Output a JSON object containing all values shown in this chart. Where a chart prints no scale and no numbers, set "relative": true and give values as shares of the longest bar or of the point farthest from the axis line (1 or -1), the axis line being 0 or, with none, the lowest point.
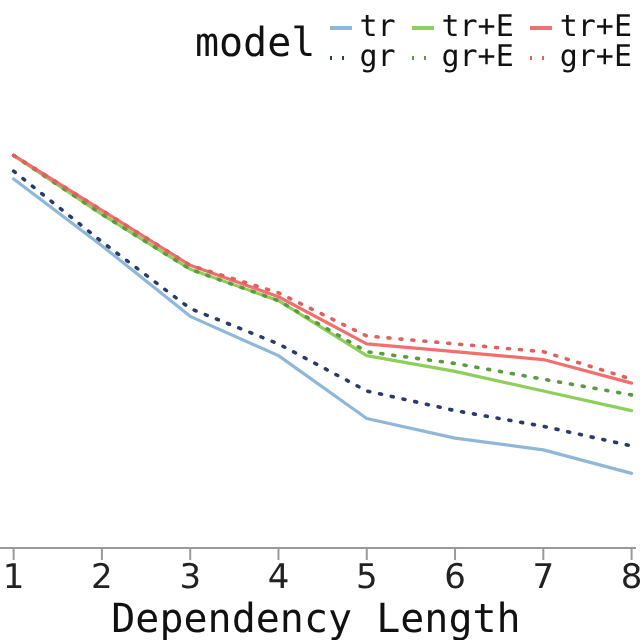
{
  "chart_data": {
    "type": "line",
    "relative": true,
    "xlabel": "Dependency Length",
    "legend_title": "model",
    "legend": "top right",
    "x": [
      1,
      2,
      3,
      4,
      5,
      6,
      7,
      8
    ],
    "xlim": [
      0.8,
      8.05
    ],
    "xticks": [
      1,
      2,
      3,
      4,
      5,
      6,
      7,
      8
    ],
    "marker": "none",
    "series": [
      {
        "name": "tr",
        "color": "#8fb8d8",
        "line_style": "solid",
        "values": [
          0.94,
          0.77,
          0.59,
          0.49,
          0.33,
          0.28,
          0.25,
          0.19
        ]
      },
      {
        "name": "gr",
        "color": "#2a3a6a",
        "line_style": "dotted",
        "values": [
          0.96,
          0.78,
          0.61,
          0.52,
          0.4,
          0.35,
          0.31,
          0.26
        ]
      },
      {
        "name": "tr+E",
        "color": "#8dcf5a",
        "line_style": "solid",
        "values": [
          1.0,
          0.85,
          0.71,
          0.63,
          0.49,
          0.45,
          0.4,
          0.35
        ]
      },
      {
        "name": "gr+E",
        "color": "#5a9a40",
        "line_style": "dotted",
        "values": [
          1.0,
          0.85,
          0.71,
          0.63,
          0.5,
          0.47,
          0.43,
          0.39
        ]
      },
      {
        "name": "tr+E",
        "color": "#f07070",
        "line_style": "solid",
        "values": [
          1.0,
          0.86,
          0.72,
          0.64,
          0.52,
          0.5,
          0.48,
          0.42
        ]
      },
      {
        "name": "gr+E",
        "color": "#e06060",
        "line_style": "dotted",
        "values": [
          1.0,
          0.86,
          0.72,
          0.65,
          0.54,
          0.52,
          0.5,
          0.43
        ]
      }
    ]
  }
}
